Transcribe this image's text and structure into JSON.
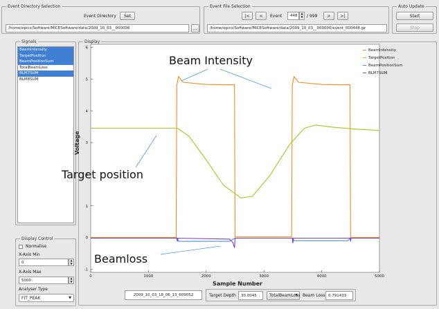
{
  "event_directory": {
    "group_title": "Event Directory Selection",
    "label": "Event Directory",
    "set_button": "Set",
    "path": "/home/epics/Software/MICESoftware/data/2009_10_03__000000",
    "browse_button": "..."
  },
  "event_file": {
    "group_title": "Event File Selection",
    "first_button": "|<",
    "prev_button": "<",
    "event_label": "Event",
    "event_value": "448",
    "total": "/ 999",
    "next_button": ">",
    "last_button": ">|",
    "path": "/home/epics/Software/MICESoftware/data/2009_10_03__000000/event_000448.gz"
  },
  "auto_update": {
    "group_title": "Auto Update",
    "start_button": "Start",
    "stop_button": "Stop"
  },
  "signals": {
    "group_title": "Signals",
    "items": [
      {
        "label": "BeamIntensity",
        "selected": true
      },
      {
        "label": "TargetPosition",
        "selected": true
      },
      {
        "label": "BeamPositionSum",
        "selected": true
      },
      {
        "label": "TotalBeamLoss",
        "selected": false
      },
      {
        "label": "BLM7SUM",
        "selected": true
      },
      {
        "label": "BLM8SUM",
        "selected": false
      }
    ]
  },
  "display_control": {
    "group_title": "Display Control",
    "normalise_label": "Normalise",
    "normalise_checked": false,
    "x_min_label": "X-Axis Min",
    "x_min_value": "0",
    "x_max_label": "X-Axis Max",
    "x_max_value": "5000",
    "analyser_label": "Analyser Type",
    "analyser_value": "FIT_PEAK"
  },
  "display": {
    "group_title": "Display",
    "annotations": {
      "beam_intensity": "Beam Intensity",
      "target_position": "Target position",
      "beamloss": "Beamloss"
    }
  },
  "bottom_bar": {
    "timestamp": "2009_10_03_18_06_13_609052",
    "target_depth_label": "Target Depth",
    "target_depth_value": "30.0045",
    "loss_select": "TotalBeamLoss",
    "beam_loss_label": "Beam Loss",
    "beam_loss_value": "0.791433"
  },
  "chart_data": {
    "type": "line",
    "xlabel": "Sample Number",
    "ylabel": "Voltage",
    "xlim": [
      0,
      5000
    ],
    "ylim": [
      -1.1,
      6.1
    ],
    "xticks": [
      0,
      1000,
      2000,
      3000,
      4000,
      5000
    ],
    "yticks": [
      -1,
      0,
      1,
      2,
      3,
      4,
      5,
      6
    ],
    "grid": false,
    "legend_position": "top-right",
    "series": [
      {
        "name": "BeamIntensity",
        "color": "#f58a1f",
        "points": [
          [
            0,
            0
          ],
          [
            1480,
            0
          ],
          [
            1490,
            4.8
          ],
          [
            1520,
            5.08
          ],
          [
            1600,
            4.9
          ],
          [
            2000,
            4.83
          ],
          [
            2490,
            4.82
          ],
          [
            2500,
            0.02
          ],
          [
            3480,
            0.02
          ],
          [
            3490,
            4.8
          ],
          [
            3520,
            5.08
          ],
          [
            3600,
            4.9
          ],
          [
            4000,
            4.83
          ],
          [
            4490,
            4.82
          ],
          [
            4500,
            0
          ],
          [
            5000,
            0
          ]
        ]
      },
      {
        "name": "TargetPosition",
        "color": "#9ccc20",
        "points": [
          [
            0,
            3.45
          ],
          [
            1500,
            3.45
          ],
          [
            1700,
            3.2
          ],
          [
            2000,
            2.45
          ],
          [
            2300,
            1.65
          ],
          [
            2600,
            1.25
          ],
          [
            2800,
            1.3
          ],
          [
            3100,
            1.95
          ],
          [
            3450,
            2.95
          ],
          [
            3700,
            3.45
          ],
          [
            3900,
            3.55
          ],
          [
            4200,
            3.48
          ],
          [
            4600,
            3.42
          ],
          [
            5000,
            3.38
          ]
        ]
      },
      {
        "name": "BeamPositionSum",
        "color": "#4a8fd6",
        "points": [
          [
            0,
            -0.02
          ],
          [
            1500,
            -0.02
          ],
          [
            1520,
            -0.12
          ],
          [
            2400,
            -0.12
          ],
          [
            2500,
            -0.02
          ],
          [
            3500,
            -0.02
          ],
          [
            3520,
            -0.1
          ],
          [
            4450,
            -0.1
          ],
          [
            4500,
            -0.02
          ],
          [
            5000,
            -0.02
          ]
        ]
      },
      {
        "name": "BLM7SUM",
        "color": "#7a3fd0",
        "points": [
          [
            0,
            -0.02
          ],
          [
            1490,
            -0.02
          ],
          [
            1500,
            -0.12
          ],
          [
            1510,
            -0.02
          ],
          [
            2400,
            -0.05
          ],
          [
            2460,
            -0.15
          ],
          [
            2490,
            -0.32
          ],
          [
            2500,
            -0.02
          ],
          [
            3490,
            -0.02
          ],
          [
            3500,
            -0.18
          ],
          [
            3510,
            -0.02
          ],
          [
            4490,
            -0.02
          ],
          [
            4500,
            -0.12
          ],
          [
            4510,
            -0.02
          ],
          [
            5000,
            -0.02
          ]
        ]
      }
    ]
  }
}
